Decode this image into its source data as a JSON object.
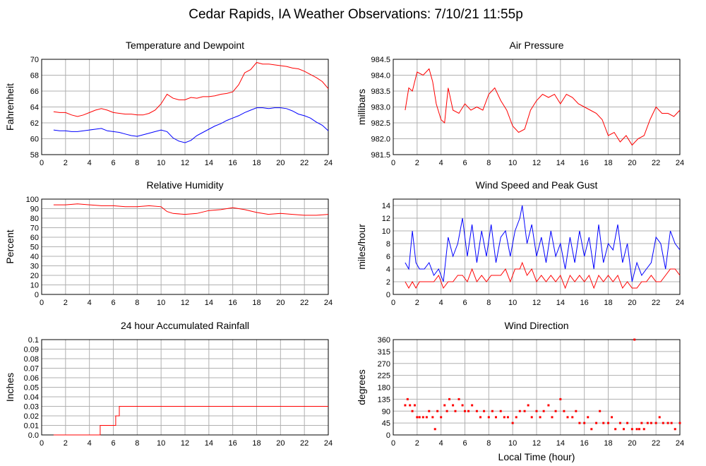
{
  "page": {
    "title": "Cedar Rapids, IA Weather Observations: 7/10/21 11:55p"
  },
  "colors": {
    "primary": "#ff0000",
    "secondary": "#0000ff",
    "grid": "#b0b0b0",
    "frame": "#000000"
  },
  "chart_data": [
    {
      "id": "temp",
      "type": "line",
      "title": "Temperature and Dewpoint",
      "xlabel": "",
      "ylabel": "Fahrenheit",
      "xlim": [
        0,
        24
      ],
      "ylim": [
        58,
        70
      ],
      "grid": true,
      "xticks": [
        0,
        2,
        4,
        6,
        8,
        10,
        12,
        14,
        16,
        18,
        20,
        22,
        24
      ],
      "xtick_labels": [
        "0",
        "2",
        "4",
        "6",
        "8",
        "10",
        "12",
        "14",
        "16",
        "18",
        "20",
        "22",
        "24"
      ],
      "yticks": [
        58,
        60,
        62,
        64,
        66,
        68,
        70
      ],
      "ytick_labels": [
        "58",
        "60",
        "62",
        "64",
        "66",
        "68",
        "70"
      ],
      "series": [
        {
          "color": "#ff0000",
          "x": [
            1,
            1.5,
            2,
            2.5,
            3,
            3.5,
            4,
            4.5,
            5,
            5.5,
            6,
            6.5,
            7,
            7.5,
            8,
            8.5,
            9,
            9.5,
            10,
            10.5,
            11,
            11.5,
            12,
            12.5,
            13,
            13.5,
            14,
            14.5,
            15,
            15.5,
            16,
            16.5,
            17,
            17.5,
            18,
            18.5,
            19,
            19.5,
            20,
            20.5,
            21,
            21.5,
            22,
            22.5,
            23,
            23.5,
            24
          ],
          "y": [
            63.4,
            63.3,
            63.3,
            63,
            62.8,
            63,
            63.3,
            63.6,
            63.8,
            63.6,
            63.3,
            63.2,
            63.1,
            63.1,
            63,
            63,
            63.2,
            63.6,
            64.4,
            65.6,
            65.1,
            64.9,
            64.9,
            65.2,
            65.1,
            65.3,
            65.3,
            65.4,
            65.6,
            65.7,
            65.9,
            66.8,
            68.3,
            68.7,
            69.6,
            69.4,
            69.4,
            69.3,
            69.2,
            69.1,
            68.9,
            68.8,
            68.5,
            68.1,
            67.7,
            67.2,
            66.3
          ]
        },
        {
          "color": "#0000ff",
          "x": [
            1,
            1.5,
            2,
            2.5,
            3,
            3.5,
            4,
            4.5,
            5,
            5.5,
            6,
            6.5,
            7,
            7.5,
            8,
            8.5,
            9,
            9.5,
            10,
            10.5,
            11,
            11.5,
            12,
            12.5,
            13,
            13.5,
            14,
            14.5,
            15,
            15.5,
            16,
            16.5,
            17,
            17.5,
            18,
            18.5,
            19,
            19.5,
            20,
            20.5,
            21,
            21.5,
            22,
            22.5,
            23,
            23.5,
            24
          ],
          "y": [
            61.1,
            61,
            61,
            60.9,
            60.9,
            61,
            61.1,
            61.2,
            61.3,
            61,
            60.9,
            60.8,
            60.6,
            60.4,
            60.3,
            60.5,
            60.7,
            60.9,
            61.1,
            60.9,
            60.1,
            59.7,
            59.5,
            59.8,
            60.4,
            60.8,
            61.2,
            61.6,
            61.9,
            62.3,
            62.6,
            62.9,
            63.3,
            63.6,
            63.9,
            63.9,
            63.8,
            63.9,
            63.9,
            63.8,
            63.5,
            63.1,
            62.9,
            62.6,
            62.1,
            61.7,
            61
          ]
        }
      ]
    },
    {
      "id": "pressure",
      "type": "line",
      "title": "Air Pressure",
      "xlabel": "",
      "ylabel": "millibars",
      "xlim": [
        0,
        24
      ],
      "ylim": [
        981.5,
        984.5
      ],
      "grid": true,
      "xticks": [
        0,
        2,
        4,
        6,
        8,
        10,
        12,
        14,
        16,
        18,
        20,
        22,
        24
      ],
      "xtick_labels": [
        "0",
        "2",
        "4",
        "6",
        "8",
        "10",
        "12",
        "14",
        "16",
        "18",
        "20",
        "22",
        "24"
      ],
      "yticks": [
        981.5,
        982,
        982.5,
        983,
        983.5,
        984,
        984.5
      ],
      "ytick_labels": [
        "981.5",
        "982.0",
        "982.5",
        "983.0",
        "983.5",
        "984.0",
        "984.5"
      ],
      "series": [
        {
          "color": "#ff0000",
          "x": [
            1,
            1.3,
            1.6,
            2,
            2.5,
            3,
            3.3,
            3.6,
            4,
            4.3,
            4.6,
            5,
            5.5,
            6,
            6.5,
            7,
            7.5,
            8,
            8.5,
            9,
            9.5,
            10,
            10.5,
            11,
            11.5,
            12,
            12.5,
            13,
            13.5,
            14,
            14.5,
            15,
            15.5,
            16,
            16.5,
            17,
            17.5,
            18,
            18.5,
            19,
            19.5,
            20,
            20.5,
            21,
            21.5,
            22,
            22.5,
            23,
            23.5,
            24
          ],
          "y": [
            982.9,
            983.6,
            983.5,
            984.1,
            984.0,
            984.2,
            983.8,
            983.1,
            982.6,
            982.5,
            983.6,
            982.9,
            982.8,
            983.1,
            982.9,
            983.0,
            982.9,
            983.4,
            983.6,
            983.2,
            982.9,
            982.4,
            982.2,
            982.3,
            982.9,
            983.2,
            983.4,
            983.3,
            983.4,
            983.1,
            983.4,
            983.3,
            983.1,
            983.0,
            982.9,
            982.8,
            982.6,
            982.1,
            982.2,
            981.9,
            982.1,
            981.8,
            982.0,
            982.1,
            982.6,
            983.0,
            982.8,
            982.8,
            982.7,
            982.9
          ]
        }
      ]
    },
    {
      "id": "humidity",
      "type": "line",
      "title": "Relative Humidity",
      "xlabel": "",
      "ylabel": "Percent",
      "xlim": [
        0,
        24
      ],
      "ylim": [
        0,
        100
      ],
      "grid": true,
      "xticks": [
        0,
        2,
        4,
        6,
        8,
        10,
        12,
        14,
        16,
        18,
        20,
        22,
        24
      ],
      "xtick_labels": [
        "0",
        "2",
        "4",
        "6",
        "8",
        "10",
        "12",
        "14",
        "16",
        "18",
        "20",
        "22",
        "24"
      ],
      "yticks": [
        0,
        10,
        20,
        30,
        40,
        50,
        60,
        70,
        80,
        90,
        100
      ],
      "ytick_labels": [
        "0",
        "10",
        "20",
        "30",
        "40",
        "50",
        "60",
        "70",
        "80",
        "90",
        "100"
      ],
      "series": [
        {
          "color": "#ff0000",
          "x": [
            1,
            2,
            3,
            4,
            5,
            6,
            7,
            8,
            9,
            10,
            10.5,
            11,
            12,
            13,
            14,
            15,
            16,
            17,
            18,
            19,
            20,
            21,
            22,
            23,
            24
          ],
          "y": [
            94,
            94,
            95,
            94,
            93,
            93,
            92,
            92,
            93,
            92,
            87,
            85,
            84,
            85,
            88,
            89,
            91,
            89,
            86,
            84,
            85,
            84,
            83,
            83,
            84
          ]
        }
      ]
    },
    {
      "id": "wind",
      "type": "line",
      "title": "Wind Speed and Peak Gust",
      "xlabel": "",
      "ylabel": "miles/hour",
      "xlim": [
        0,
        24
      ],
      "ylim": [
        0,
        15
      ],
      "grid": true,
      "xticks": [
        0,
        2,
        4,
        6,
        8,
        10,
        12,
        14,
        16,
        18,
        20,
        22,
        24
      ],
      "xtick_labels": [
        "0",
        "2",
        "4",
        "6",
        "8",
        "10",
        "12",
        "14",
        "16",
        "18",
        "20",
        "22",
        "24"
      ],
      "yticks": [
        0,
        2,
        4,
        6,
        8,
        10,
        12,
        14
      ],
      "ytick_labels": [
        "0",
        "2",
        "4",
        "6",
        "8",
        "10",
        "12",
        "14"
      ],
      "series": [
        {
          "color": "#0000ff",
          "x": [
            1,
            1.3,
            1.6,
            1.9,
            2.2,
            2.6,
            3,
            3.4,
            3.8,
            4.2,
            4.6,
            5,
            5.4,
            5.8,
            6.2,
            6.6,
            7,
            7.4,
            7.8,
            8.2,
            8.6,
            9,
            9.4,
            9.8,
            10.2,
            10.6,
            10.8,
            11.2,
            11.6,
            12,
            12.4,
            12.8,
            13.2,
            13.6,
            14,
            14.4,
            14.8,
            15.2,
            15.6,
            16,
            16.4,
            16.8,
            17.2,
            17.6,
            18,
            18.4,
            18.8,
            19.2,
            19.6,
            20,
            20.4,
            20.8,
            21.2,
            21.6,
            22,
            22.4,
            22.8,
            23.2,
            23.6,
            24
          ],
          "y": [
            5,
            4,
            10,
            5,
            4,
            4,
            5,
            3,
            4,
            2,
            9,
            6,
            8,
            12,
            6,
            11,
            5,
            10,
            6,
            11,
            5,
            9,
            10,
            6,
            10,
            12,
            14,
            8,
            11,
            6,
            9,
            5,
            10,
            6,
            8,
            4,
            9,
            5,
            10,
            6,
            9,
            4,
            11,
            5,
            8,
            7,
            11,
            5,
            8,
            2,
            5,
            3,
            4,
            5,
            9,
            8,
            4,
            10,
            8,
            7
          ]
        },
        {
          "color": "#ff0000",
          "x": [
            1,
            1.3,
            1.6,
            1.9,
            2.2,
            2.6,
            3,
            3.4,
            3.8,
            4.2,
            4.6,
            5,
            5.4,
            5.8,
            6.2,
            6.6,
            7,
            7.4,
            7.8,
            8.2,
            8.6,
            9,
            9.4,
            9.8,
            10.2,
            10.6,
            10.8,
            11.2,
            11.6,
            12,
            12.4,
            12.8,
            13.2,
            13.6,
            14,
            14.4,
            14.8,
            15.2,
            15.6,
            16,
            16.4,
            16.8,
            17.2,
            17.6,
            18,
            18.4,
            18.8,
            19.2,
            19.6,
            20,
            20.4,
            20.8,
            21.2,
            21.6,
            22,
            22.4,
            22.8,
            23.2,
            23.6,
            24
          ],
          "y": [
            2,
            1,
            2,
            1,
            2,
            2,
            2,
            2,
            3,
            1,
            2,
            2,
            3,
            3,
            2,
            4,
            2,
            3,
            2,
            3,
            3,
            3,
            4,
            2,
            4,
            4,
            5,
            3,
            4,
            2,
            3,
            2,
            3,
            2,
            3,
            1,
            3,
            2,
            3,
            2,
            3,
            1,
            3,
            2,
            3,
            2,
            3,
            1,
            2,
            1,
            1,
            2,
            2,
            3,
            2,
            2,
            3,
            4,
            4,
            3
          ]
        }
      ]
    },
    {
      "id": "rain",
      "type": "line",
      "title": "24 hour Accumulated Rainfall",
      "xlabel": "",
      "ylabel": "Inches",
      "xlim": [
        0,
        24
      ],
      "ylim": [
        0,
        0.1
      ],
      "grid": true,
      "xticks": [
        0,
        2,
        4,
        6,
        8,
        10,
        12,
        14,
        16,
        18,
        20,
        22,
        24
      ],
      "xtick_labels": [
        "0",
        "2",
        "4",
        "6",
        "8",
        "10",
        "12",
        "14",
        "16",
        "18",
        "20",
        "22",
        "24"
      ],
      "yticks": [
        0,
        0.01,
        0.02,
        0.03,
        0.04,
        0.05,
        0.06,
        0.07,
        0.08,
        0.09,
        0.1
      ],
      "ytick_labels": [
        "0.0",
        "0.01",
        "0.02",
        "0.03",
        "0.04",
        "0.05",
        "0.06",
        "0.07",
        "0.08",
        "0.09",
        "0.1"
      ],
      "series": [
        {
          "color": "#ff0000",
          "x": [
            1,
            4.9,
            4.9,
            6.2,
            6.2,
            6.5,
            6.5,
            24
          ],
          "y": [
            0,
            0,
            0.01,
            0.01,
            0.02,
            0.02,
            0.03,
            0.03
          ]
        }
      ]
    },
    {
      "id": "direction",
      "type": "scatter",
      "title": "Wind Direction",
      "xlabel": "Local Time (hour)",
      "ylabel": "degrees",
      "xlim": [
        0,
        24
      ],
      "ylim": [
        0,
        360
      ],
      "grid": true,
      "xticks": [
        0,
        2,
        4,
        6,
        8,
        10,
        12,
        14,
        16,
        18,
        20,
        22,
        24
      ],
      "xtick_labels": [
        "0",
        "2",
        "4",
        "6",
        "8",
        "10",
        "12",
        "14",
        "16",
        "18",
        "20",
        "22",
        "24"
      ],
      "yticks": [
        0,
        45,
        90,
        135,
        180,
        225,
        270,
        315,
        360
      ],
      "ytick_labels": [
        "0",
        "45",
        "90",
        "135",
        "180",
        "225",
        "270",
        "315",
        "360"
      ],
      "series": [
        {
          "color": "#ff0000",
          "x": [
            1,
            1.2,
            1.4,
            1.6,
            1.8,
            2,
            2.2,
            2.5,
            2.8,
            3,
            3.3,
            3.5,
            3.7,
            4,
            4.3,
            4.5,
            4.7,
            5,
            5.2,
            5.5,
            5.8,
            6,
            6.3,
            6.6,
            7,
            7.3,
            7.6,
            8,
            8.3,
            8.6,
            9,
            9.3,
            9.6,
            10,
            10.3,
            10.6,
            11,
            11.3,
            11.6,
            12,
            12.3,
            12.6,
            13,
            13.3,
            13.6,
            14,
            14.3,
            14.6,
            15,
            15.3,
            15.6,
            16,
            16.3,
            16.6,
            17,
            17.3,
            17.6,
            18,
            18.3,
            18.6,
            19,
            19.3,
            19.6,
            20,
            20.2,
            20.4,
            20.6,
            20.8,
            21,
            21.3,
            21.6,
            22,
            22.3,
            22.6,
            23,
            23.3,
            23.6,
            24
          ],
          "y": [
            112,
            135,
            112,
            90,
            112,
            67,
            67,
            67,
            67,
            90,
            67,
            22,
            90,
            67,
            112,
            90,
            135,
            112,
            90,
            135,
            112,
            90,
            90,
            112,
            90,
            67,
            90,
            67,
            90,
            67,
            90,
            67,
            67,
            45,
            67,
            90,
            90,
            112,
            67,
            90,
            67,
            90,
            112,
            67,
            90,
            135,
            90,
            67,
            67,
            90,
            45,
            45,
            67,
            22,
            45,
            90,
            45,
            45,
            67,
            22,
            45,
            22,
            45,
            22,
            360,
            22,
            22,
            45,
            22,
            45,
            45,
            45,
            67,
            45,
            45,
            45,
            22,
            45
          ]
        }
      ]
    }
  ]
}
